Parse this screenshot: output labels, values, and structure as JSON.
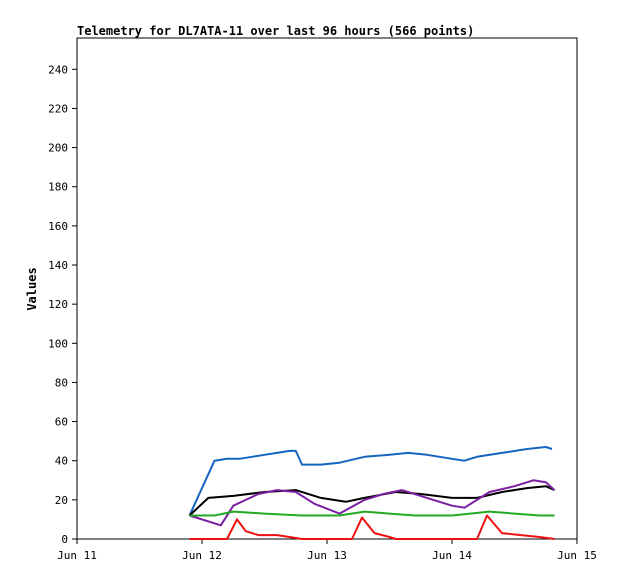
{
  "chart_data": {
    "type": "line",
    "title": "Telemetry for DL7ATA-11 over last 96 hours (566 points)",
    "xlabel": "",
    "ylabel": "Values",
    "xlim": [
      0,
      4
    ],
    "ylim": [
      0,
      256
    ],
    "x_ticks": [
      {
        "x": 0,
        "label": "Jun 11"
      },
      {
        "x": 1,
        "label": "Jun 12"
      },
      {
        "x": 2,
        "label": "Jun 13"
      },
      {
        "x": 3,
        "label": "Jun 14"
      },
      {
        "x": 4,
        "label": "Jun 15"
      }
    ],
    "y_ticks": [
      0,
      20,
      40,
      60,
      80,
      100,
      120,
      140,
      160,
      180,
      200,
      220,
      240
    ],
    "grid": false,
    "legend": "none",
    "x_unit": "days after Jun 11 00:00",
    "series": [
      {
        "color": "#1565c0",
        "points": [
          [
            0.9,
            12
          ],
          [
            1.1,
            40
          ],
          [
            1.2,
            41
          ],
          [
            1.3,
            41
          ],
          [
            1.4,
            42
          ],
          [
            1.5,
            43
          ],
          [
            1.6,
            44
          ],
          [
            1.7,
            45
          ],
          [
            1.75,
            45
          ],
          [
            1.8,
            38
          ],
          [
            1.95,
            38
          ],
          [
            2.1,
            39
          ],
          [
            2.3,
            42
          ],
          [
            2.5,
            43
          ],
          [
            2.65,
            44
          ],
          [
            2.8,
            43
          ],
          [
            3.0,
            41
          ],
          [
            3.1,
            40
          ],
          [
            3.2,
            42
          ],
          [
            3.4,
            44
          ],
          [
            3.6,
            46
          ],
          [
            3.75,
            47
          ],
          [
            3.8,
            46
          ]
        ]
      },
      {
        "color": "#000000",
        "points": [
          [
            0.9,
            12
          ],
          [
            1.05,
            21
          ],
          [
            1.25,
            22
          ],
          [
            1.5,
            24
          ],
          [
            1.75,
            25
          ],
          [
            1.95,
            21
          ],
          [
            2.15,
            19
          ],
          [
            2.3,
            21
          ],
          [
            2.55,
            24
          ],
          [
            2.75,
            23
          ],
          [
            3.0,
            21
          ],
          [
            3.2,
            21
          ],
          [
            3.4,
            24
          ],
          [
            3.6,
            26
          ],
          [
            3.75,
            27
          ],
          [
            3.82,
            25
          ]
        ]
      },
      {
        "color": "#7b1fa2",
        "points": [
          [
            0.9,
            12
          ],
          [
            1.15,
            7
          ],
          [
            1.25,
            17
          ],
          [
            1.45,
            23
          ],
          [
            1.6,
            25
          ],
          [
            1.75,
            24
          ],
          [
            1.9,
            18
          ],
          [
            2.1,
            13
          ],
          [
            2.3,
            20
          ],
          [
            2.45,
            23
          ],
          [
            2.6,
            25
          ],
          [
            2.8,
            21
          ],
          [
            3.0,
            17
          ],
          [
            3.1,
            16
          ],
          [
            3.3,
            24
          ],
          [
            3.5,
            27
          ],
          [
            3.65,
            30
          ],
          [
            3.75,
            29
          ],
          [
            3.82,
            25
          ]
        ]
      },
      {
        "color": "#22aa22",
        "points": [
          [
            0.9,
            12
          ],
          [
            1.1,
            12
          ],
          [
            1.25,
            14
          ],
          [
            1.5,
            13
          ],
          [
            1.8,
            12
          ],
          [
            2.1,
            12
          ],
          [
            2.3,
            14
          ],
          [
            2.5,
            13
          ],
          [
            2.7,
            12
          ],
          [
            3.0,
            12
          ],
          [
            3.3,
            14
          ],
          [
            3.5,
            13
          ],
          [
            3.7,
            12
          ],
          [
            3.82,
            12
          ]
        ]
      },
      {
        "color": "#ee1111",
        "points": [
          [
            0.9,
            0
          ],
          [
            1.2,
            0
          ],
          [
            1.28,
            10
          ],
          [
            1.35,
            4
          ],
          [
            1.45,
            2
          ],
          [
            1.6,
            2
          ],
          [
            1.7,
            1
          ],
          [
            1.8,
            0
          ],
          [
            2.2,
            0
          ],
          [
            2.28,
            11
          ],
          [
            2.38,
            3
          ],
          [
            2.5,
            1
          ],
          [
            2.55,
            0
          ],
          [
            3.2,
            0
          ],
          [
            3.28,
            12
          ],
          [
            3.4,
            3
          ],
          [
            3.55,
            2
          ],
          [
            3.7,
            1
          ],
          [
            3.82,
            0
          ]
        ]
      }
    ]
  }
}
